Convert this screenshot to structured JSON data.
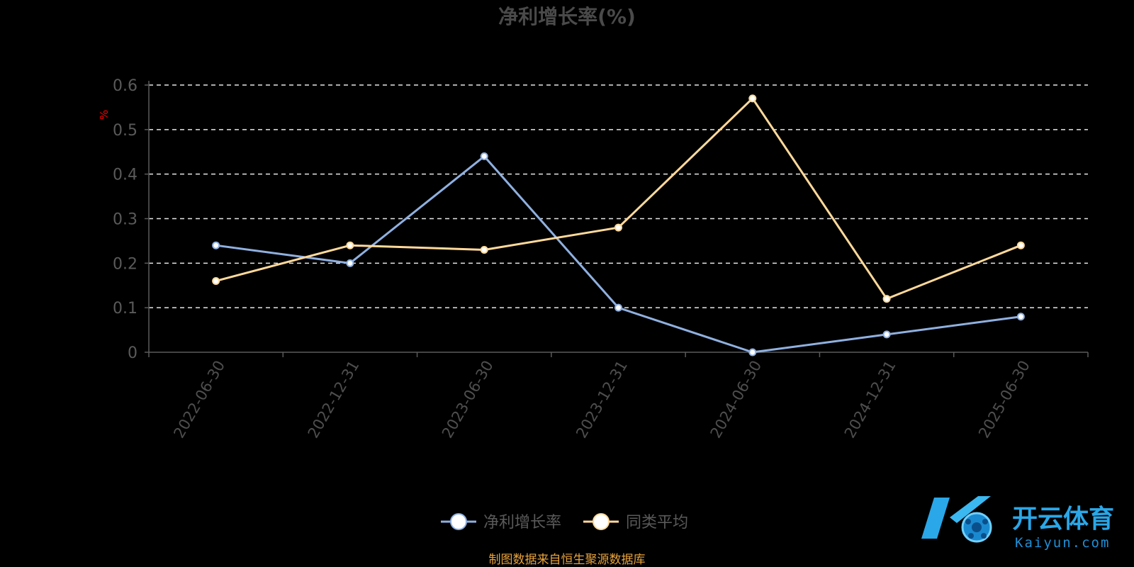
{
  "title": "净利增长率(%)",
  "source": "制图数据来自恒生聚源数据库",
  "watermark": {
    "text": "开云体育",
    "subtext": "Kaiyun.com"
  },
  "chart_data": {
    "type": "line",
    "title": "净利增长率(%)",
    "xlabel": "",
    "ylabel": "%",
    "categories": [
      "2022-06-30",
      "2022-12-31",
      "2023-06-30",
      "2023-12-31",
      "2024-06-30",
      "2024-12-31",
      "2025-06-30"
    ],
    "ylim": [
      0,
      0.6
    ],
    "yticks": [
      "0",
      "0.1",
      "0.2",
      "0.3",
      "0.4",
      "0.5",
      "0.6"
    ],
    "grid": true,
    "legend_position": "bottom",
    "series": [
      {
        "name": "净利增长率",
        "color": "#8fb0e0",
        "values": [
          0.24,
          0.2,
          0.44,
          0.1,
          0.0,
          0.04,
          0.08
        ]
      },
      {
        "name": "同类平均",
        "color": "#ffd99a",
        "values": [
          0.16,
          0.24,
          0.23,
          0.28,
          0.57,
          0.12,
          0.24
        ]
      }
    ]
  }
}
